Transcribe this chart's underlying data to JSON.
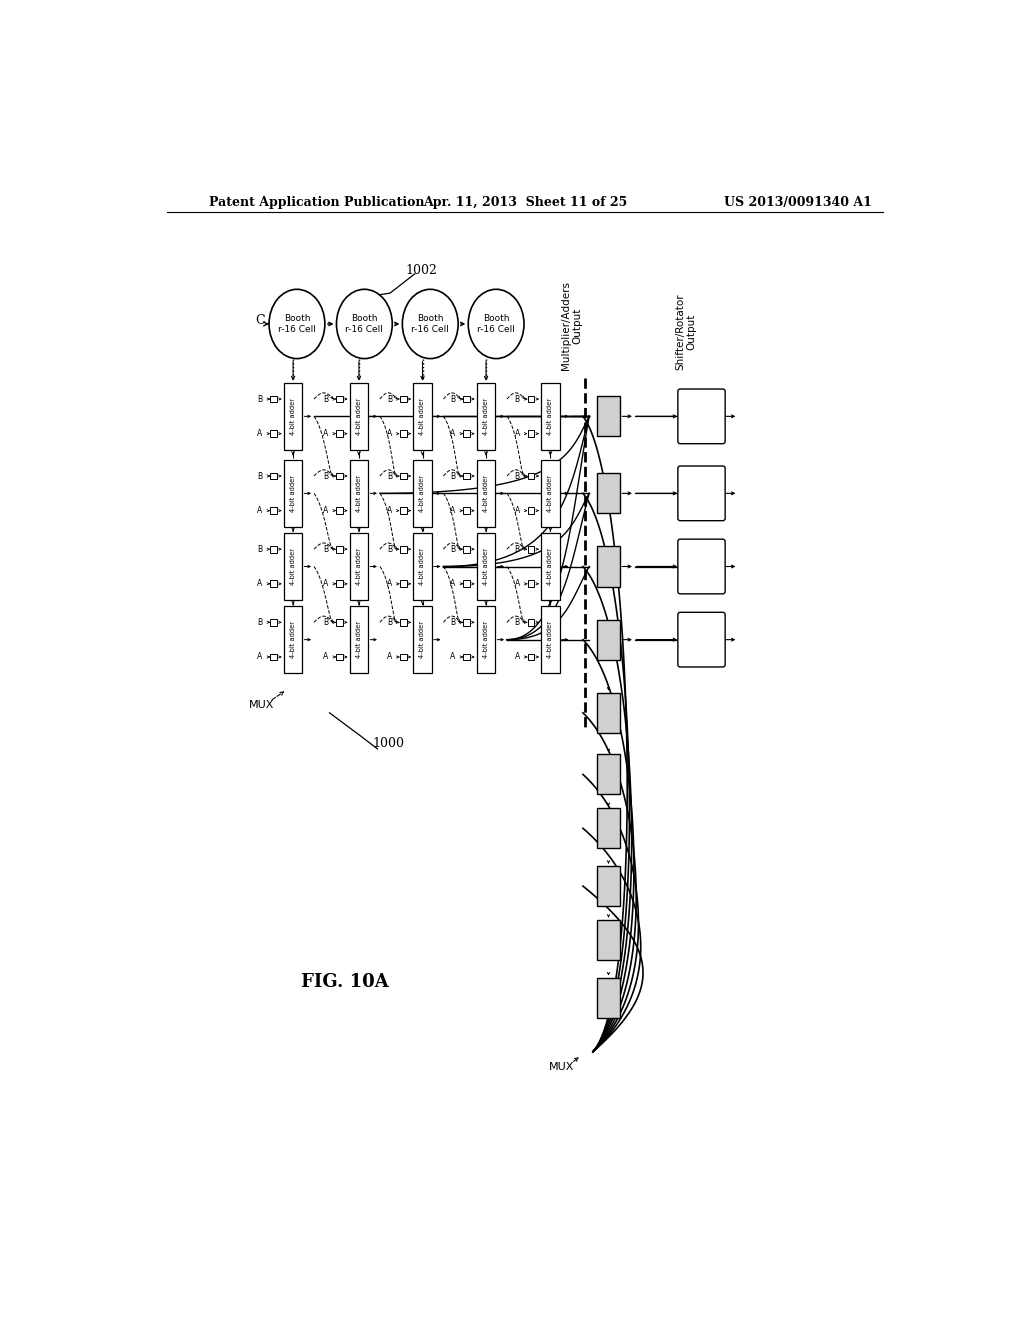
{
  "title_left": "Patent Application Publication",
  "title_center": "Apr. 11, 2013  Sheet 11 of 25",
  "title_right": "US 2013/0091340 A1",
  "fig_label": "FIG. 10A",
  "bg_color": "#ffffff",
  "booth_labels": [
    "Booth\nr-16 Cell",
    "Booth\nr-16 Cell",
    "Booth\nr-16 Cell",
    "Booth\nr-16 Cell"
  ],
  "note_1002": "1002",
  "note_1000": "1000",
  "label_multiplier": "Multiplier/Adders\nOutput",
  "label_shifter": "Shifter/Rotator\nOutput"
}
